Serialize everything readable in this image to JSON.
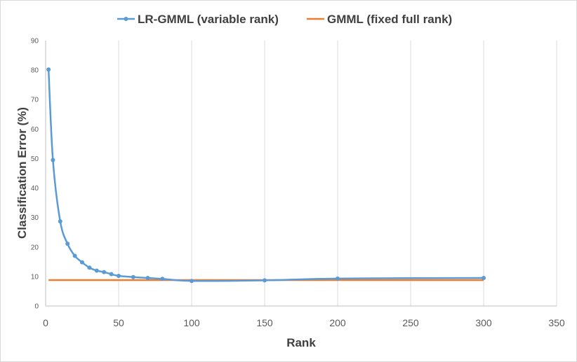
{
  "chart_data": {
    "type": "line",
    "xlabel": "Rank",
    "ylabel": "Classification Error (%)",
    "xlim": [
      0,
      350
    ],
    "ylim": [
      0,
      90
    ],
    "x_ticks": [
      0,
      50,
      100,
      150,
      200,
      250,
      300,
      350
    ],
    "y_ticks": [
      0,
      10,
      20,
      30,
      40,
      50,
      60,
      70,
      80,
      90
    ],
    "grid": "vertical",
    "legend_position": "top-center",
    "series": [
      {
        "name": "LR-GMML (variable rank)",
        "color": "#5b9bd5",
        "markers": true,
        "x": [
          2,
          5,
          10,
          15,
          20,
          25,
          30,
          35,
          40,
          45,
          50,
          60,
          70,
          80,
          100,
          150,
          200,
          300
        ],
        "y": [
          80.2,
          49.5,
          28.7,
          21.1,
          17.0,
          14.8,
          13.0,
          12.0,
          11.5,
          10.8,
          10.2,
          9.8,
          9.5,
          9.2,
          8.5,
          8.7,
          9.3,
          9.5
        ]
      },
      {
        "name": "GMML (fixed full rank)",
        "color": "#ed7d31",
        "markers": false,
        "x": [
          2,
          300
        ],
        "y": [
          8.8,
          8.8
        ]
      }
    ]
  }
}
